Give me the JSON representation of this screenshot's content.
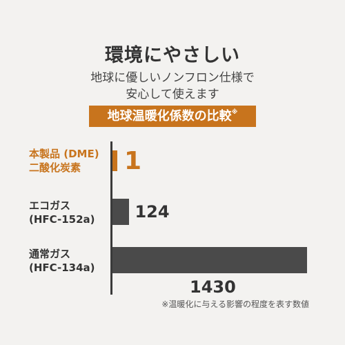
{
  "title": "環境にやさしい",
  "subtitle_line1": "地球に優しいノンフロン仕様で",
  "subtitle_line2": "安心して使えます",
  "banner": {
    "text": "地球温暖化係数の比較",
    "mark": "※"
  },
  "footnote": "※温暖化に与える影響の程度を表す数値",
  "colors": {
    "accent": "#c8741d",
    "bar": "#4a4a4a",
    "background": "#f3f2f0"
  },
  "chart_data": {
    "type": "bar",
    "orientation": "horizontal",
    "title": "地球温暖化係数の比較",
    "categories": [
      [
        "本製品 (DME)",
        "二酸化炭素"
      ],
      [
        "エコガス",
        "(HFC-152a)"
      ],
      [
        "通常ガス",
        "(HFC-134a)"
      ]
    ],
    "values": [
      1,
      124,
      1430
    ],
    "value_labels": [
      "1",
      "124",
      "1430"
    ],
    "highlight_index": 0,
    "xlim": [
      0,
      1430
    ],
    "grid": false,
    "legend": "none"
  }
}
